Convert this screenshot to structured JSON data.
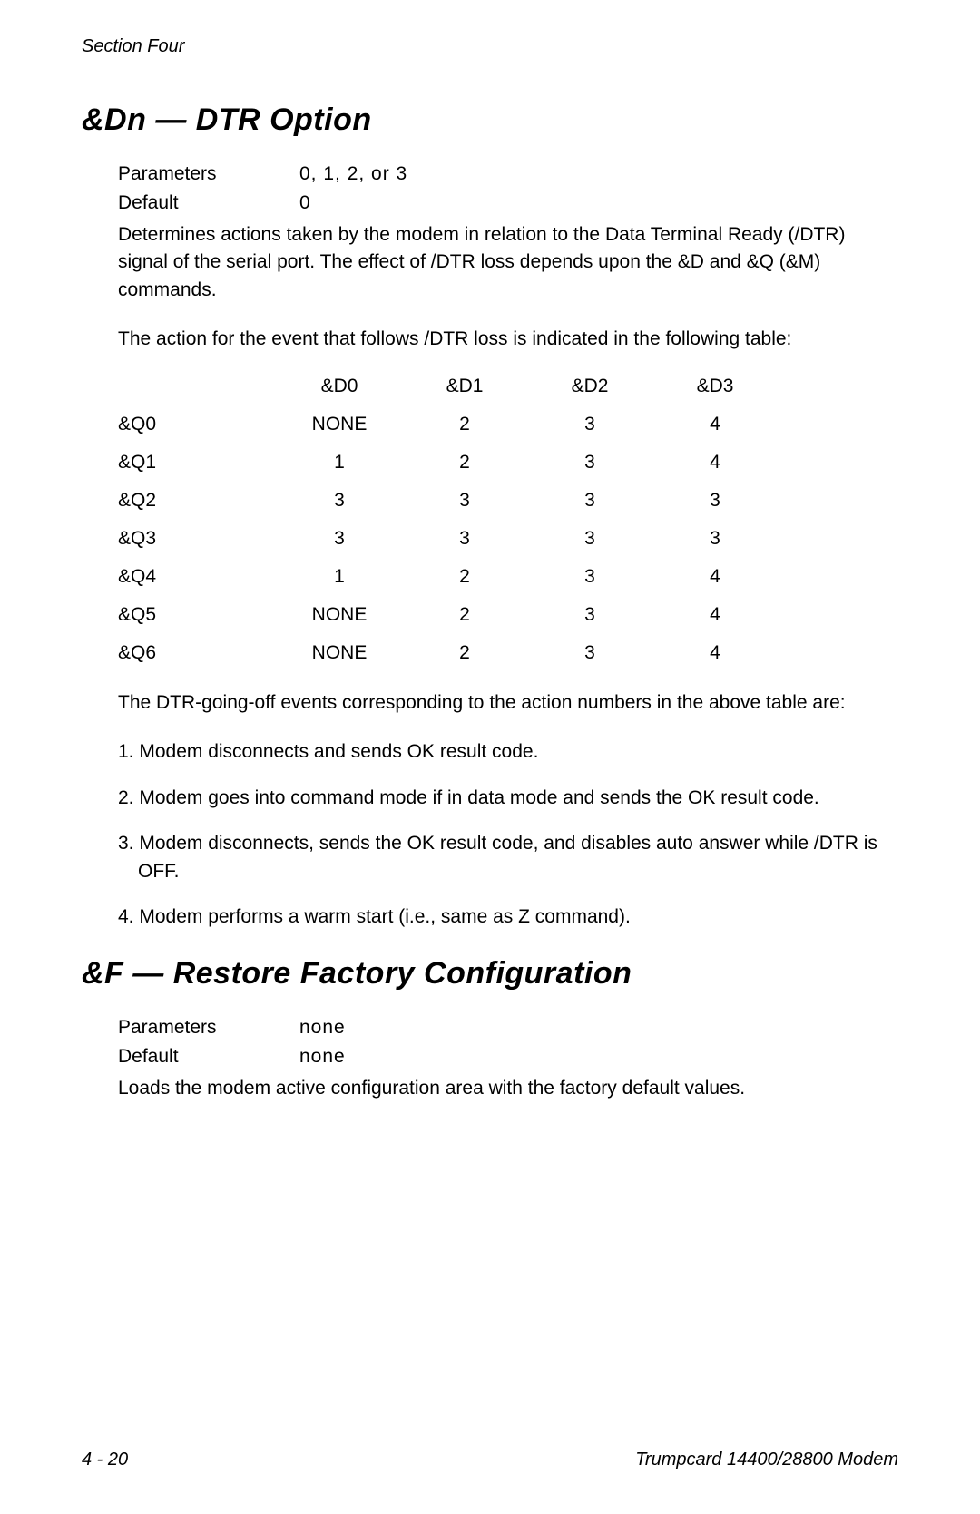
{
  "header": {
    "section_label": "Section  Four"
  },
  "section1": {
    "title": "&Dn — DTR Option",
    "parameters_label": "Parameters",
    "parameters_value": "0, 1, 2, or 3",
    "default_label": "Default",
    "default_value": "0",
    "description1": "Determines actions taken by the modem in relation to the Data Terminal Ready (/DTR) signal of the serial port. The effect of /DTR loss depends upon the &D and &Q (&M) commands.",
    "description2": "The action for the event that follows /DTR loss is indicated in the following table:",
    "table": {
      "headers": [
        "&D0",
        "&D1",
        "&D2",
        "&D3"
      ],
      "rows": [
        {
          "label": "&Q0",
          "values": [
            "NONE",
            "2",
            "3",
            "4"
          ]
        },
        {
          "label": "&Q1",
          "values": [
            "1",
            "2",
            "3",
            "4"
          ]
        },
        {
          "label": "&Q2",
          "values": [
            "3",
            "3",
            "3",
            "3"
          ]
        },
        {
          "label": "&Q3",
          "values": [
            "3",
            "3",
            "3",
            "3"
          ]
        },
        {
          "label": "&Q4",
          "values": [
            "1",
            "2",
            "3",
            "4"
          ]
        },
        {
          "label": "&Q5",
          "values": [
            "NONE",
            "2",
            "3",
            "4"
          ]
        },
        {
          "label": "&Q6",
          "values": [
            "NONE",
            "2",
            "3",
            "4"
          ]
        }
      ]
    },
    "description3": "The DTR-going-off events corresponding to the action numbers in the above table are:",
    "list": [
      "1.  Modem disconnects and sends OK result code.",
      "2.  Modem goes into command mode if in data mode and sends the OK result code.",
      "3.  Modem disconnects, sends the OK result code, and disables auto answer while /DTR is OFF.",
      "4.  Modem performs a warm start (i.e., same as Z command)."
    ]
  },
  "section2": {
    "title": "&F — Restore Factory Configuration",
    "parameters_label": "Parameters",
    "parameters_value": "none",
    "default_label": "Default",
    "default_value": "none",
    "description1": "Loads the modem active configuration area with the factory default values."
  },
  "footer": {
    "page_number": "4 - 20",
    "product_name": "Trumpcard 14400/28800 Modem"
  }
}
